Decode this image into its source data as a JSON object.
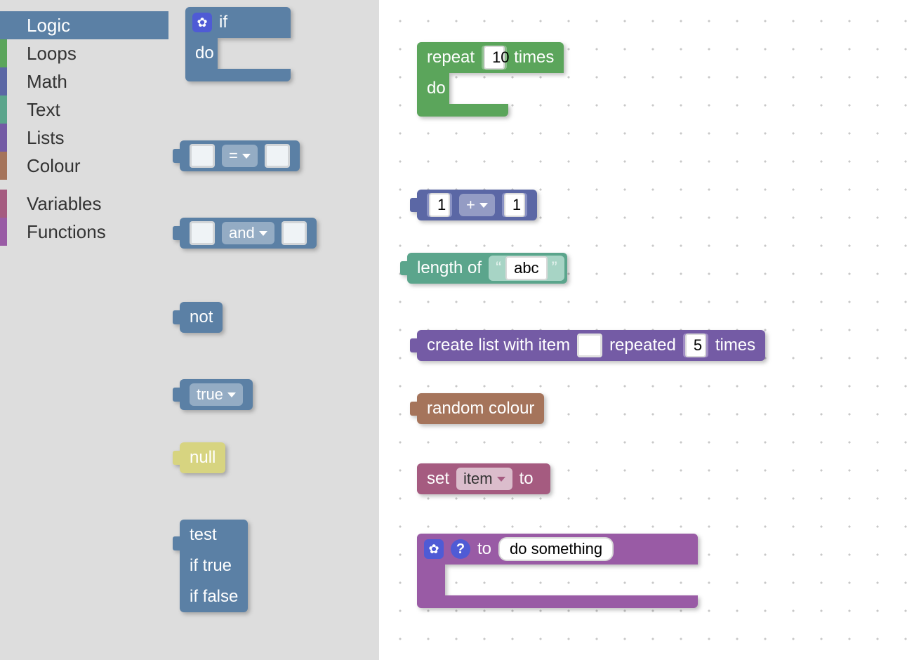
{
  "colors": {
    "logic": "#5b80a5",
    "loops": "#5ba55b",
    "math": "#5b67a5",
    "text": "#5ba58c",
    "lists": "#745ba5",
    "colour": "#a5745b",
    "variables": "#a55b80",
    "functions": "#995ba5",
    "null_bg": "#d7d480",
    "sidebar_bg": "#dddddd",
    "grid_dot": "#c8c8c8"
  },
  "sidebar": {
    "groups": [
      {
        "cats": [
          {
            "id": "logic",
            "label": "Logic",
            "color_key": "logic",
            "selected": true
          },
          {
            "id": "loops",
            "label": "Loops",
            "color_key": "loops",
            "selected": false
          },
          {
            "id": "math",
            "label": "Math",
            "color_key": "math",
            "selected": false
          },
          {
            "id": "text",
            "label": "Text",
            "color_key": "text",
            "selected": false
          },
          {
            "id": "lists",
            "label": "Lists",
            "color_key": "lists",
            "selected": false
          },
          {
            "id": "colour",
            "label": "Colour",
            "color_key": "colour",
            "selected": false
          }
        ]
      },
      {
        "cats": [
          {
            "id": "variables",
            "label": "Variables",
            "color_key": "variables",
            "selected": false
          },
          {
            "id": "functions",
            "label": "Functions",
            "color_key": "functions",
            "selected": false
          }
        ]
      }
    ]
  },
  "flyout": {
    "if_block": {
      "if": "if",
      "do": "do"
    },
    "compare_block": {
      "op": "="
    },
    "logic_op_block": {
      "op": "and"
    },
    "not_block": {
      "label": "not"
    },
    "bool_block": {
      "value": "true"
    },
    "null_block": {
      "label": "null"
    },
    "ternary_block": {
      "test": "test",
      "if_true": "if true",
      "if_false": "if false"
    }
  },
  "workspace": {
    "repeat_block": {
      "repeat": "repeat",
      "count": "10",
      "times": "times",
      "do": "do"
    },
    "math_block": {
      "a": "1",
      "op": "+",
      "b": "1"
    },
    "length_block": {
      "label": "length of",
      "text": "abc",
      "lq": "“",
      "rq": "”"
    },
    "list_block": {
      "l1": "create list with item",
      "l2": "repeated",
      "count": "5",
      "l3": "times"
    },
    "colour_block": {
      "label": "random colour"
    },
    "var_block": {
      "set": "set",
      "name": "item",
      "to": "to"
    },
    "func_block": {
      "to": "to",
      "name": "do something"
    }
  }
}
